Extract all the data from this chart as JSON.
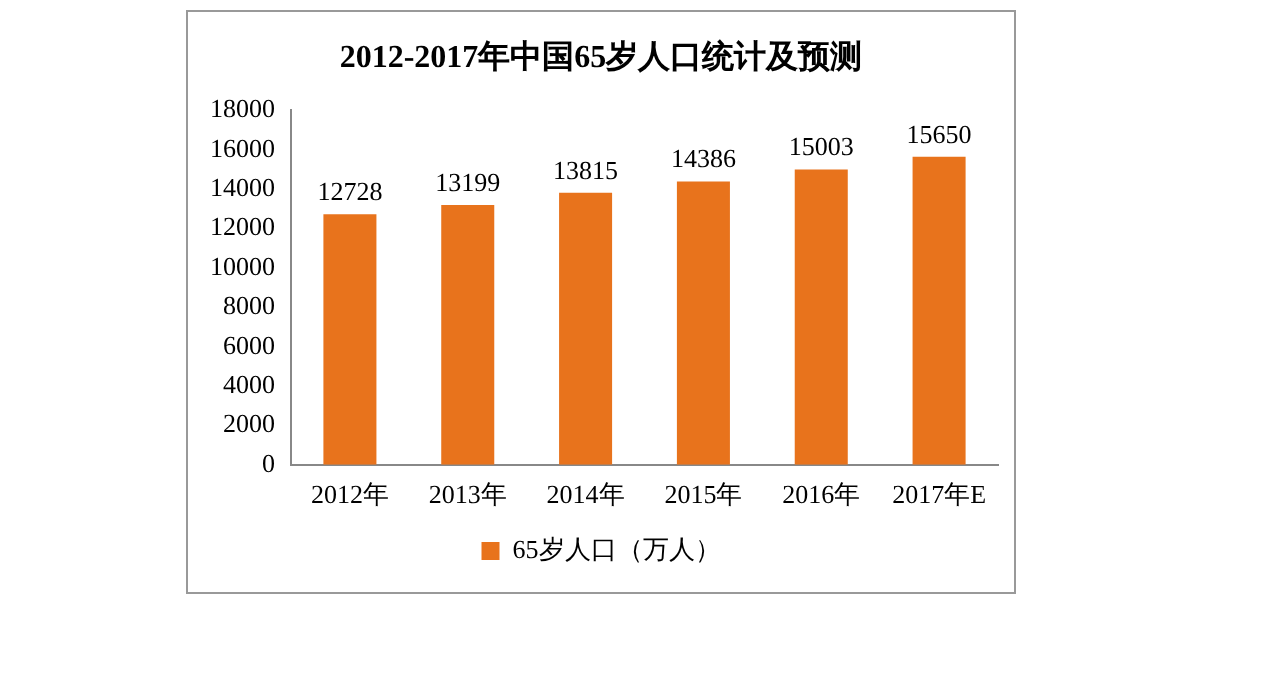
{
  "chart_data": {
    "type": "bar",
    "title": "2012-2017年中国65岁人口统计及预测",
    "categories": [
      "2012年",
      "2013年",
      "2014年",
      "2015年",
      "2016年",
      "2017年E"
    ],
    "series": [
      {
        "name": "65岁人口（万人）",
        "color": "#e8731c",
        "values": [
          12728,
          13199,
          13815,
          14386,
          15003,
          15650
        ]
      }
    ],
    "ylim": [
      0,
      18000
    ],
    "yticks": [
      0,
      2000,
      4000,
      6000,
      8000,
      10000,
      12000,
      14000,
      16000,
      18000
    ],
    "grid": false,
    "legend": "bottom",
    "data_labels": true
  }
}
